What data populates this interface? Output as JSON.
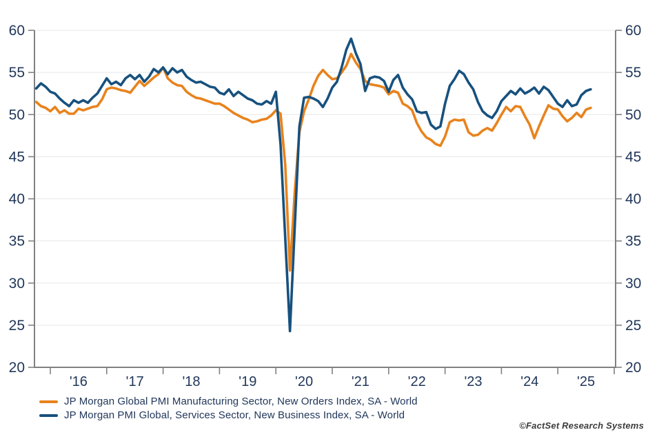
{
  "colors": {
    "manufacturing": "#E8831D",
    "services": "#17517E",
    "axis_line": "#808080",
    "gridline": "#E7E7E7",
    "tick_text": "#21375A",
    "attribution_text": "#3C3C3C"
  },
  "attribution": "©FactSet Research Systems",
  "chart_data": {
    "type": "line",
    "title": "",
    "xlabel": "",
    "ylabel": "",
    "frequency": "monthly",
    "start": "2015-10",
    "end": "2025-08",
    "ylim": [
      20,
      60
    ],
    "y_ticks": [
      20,
      25,
      30,
      35,
      40,
      45,
      50,
      55,
      60
    ],
    "y_axis_sides": "both",
    "grid": "horizontal-light",
    "legend_position": "bottom-left",
    "x_tick_labels": [
      "'16",
      "'17",
      "'18",
      "'19",
      "'20",
      "'21",
      "'22",
      "'23",
      "'24",
      "'25"
    ],
    "series": [
      {
        "name": "JP Morgan Global PMI Manufacturing Sector, New Orders Index, SA - World",
        "color_key": "manufacturing",
        "values": [
          51.5,
          51.0,
          50.8,
          50.4,
          50.9,
          50.2,
          50.5,
          50.1,
          50.1,
          50.7,
          50.5,
          50.7,
          50.9,
          51.0,
          51.8,
          53.0,
          53.2,
          53.1,
          52.9,
          52.8,
          52.6,
          53.3,
          54.0,
          53.4,
          53.9,
          54.4,
          54.8,
          55.6,
          54.3,
          53.8,
          53.5,
          53.4,
          52.7,
          52.3,
          52.0,
          51.9,
          51.7,
          51.5,
          51.3,
          51.3,
          51.0,
          50.6,
          50.2,
          49.9,
          49.6,
          49.4,
          49.1,
          49.2,
          49.4,
          49.5,
          49.9,
          50.5,
          50.1,
          44.0,
          31.5,
          40.7,
          47.9,
          50.4,
          51.8,
          53.4,
          54.6,
          55.3,
          54.7,
          54.2,
          54.3,
          55.0,
          55.8,
          57.2,
          56.2,
          55.4,
          54.0,
          53.6,
          53.5,
          53.4,
          53.2,
          52.4,
          52.8,
          52.6,
          51.3,
          51.0,
          50.5,
          49.0,
          48.0,
          47.3,
          47.0,
          46.5,
          46.3,
          47.4,
          49.1,
          49.4,
          49.3,
          49.4,
          47.9,
          47.5,
          47.6,
          48.1,
          48.4,
          48.1,
          49.0,
          50.0,
          50.9,
          50.4,
          51.0,
          50.9,
          49.8,
          48.8,
          47.2,
          48.6,
          49.9,
          51.1,
          50.7,
          50.6,
          49.8,
          49.2,
          49.6,
          50.2,
          49.7,
          50.6,
          50.8
        ]
      },
      {
        "name": "JP Morgan PMI Global, Services Sector, New Business Index, SA - World",
        "color_key": "services",
        "values": [
          53.1,
          53.7,
          53.3,
          52.7,
          52.5,
          51.9,
          51.4,
          51.0,
          51.7,
          51.4,
          51.7,
          51.4,
          52.0,
          52.5,
          53.4,
          54.3,
          53.6,
          53.9,
          53.5,
          54.3,
          54.7,
          54.2,
          54.7,
          53.9,
          54.5,
          55.4,
          55.0,
          55.6,
          54.8,
          55.5,
          55.0,
          55.3,
          54.5,
          54.1,
          53.8,
          53.9,
          53.6,
          53.3,
          53.2,
          52.6,
          52.4,
          53.0,
          52.2,
          52.7,
          52.3,
          51.9,
          51.7,
          51.3,
          51.2,
          51.6,
          51.3,
          52.7,
          46.4,
          35.3,
          24.3,
          36.5,
          48.6,
          52.0,
          52.1,
          51.9,
          51.6,
          50.9,
          51.9,
          53.2,
          53.9,
          55.6,
          57.7,
          59.0,
          57.3,
          56.0,
          52.8,
          54.3,
          54.5,
          54.4,
          54.0,
          52.7,
          54.1,
          54.7,
          53.2,
          52.4,
          51.8,
          50.4,
          50.2,
          50.3,
          48.8,
          48.3,
          48.6,
          51.3,
          53.4,
          54.2,
          55.2,
          54.8,
          53.8,
          53.0,
          51.5,
          50.4,
          49.9,
          49.6,
          50.4,
          51.6,
          52.2,
          52.8,
          52.4,
          53.1,
          52.5,
          52.8,
          53.2,
          52.5,
          53.3,
          52.9,
          52.1,
          51.3,
          50.9,
          51.7,
          51.0,
          51.2,
          52.3,
          52.8,
          53.0
        ]
      }
    ]
  }
}
